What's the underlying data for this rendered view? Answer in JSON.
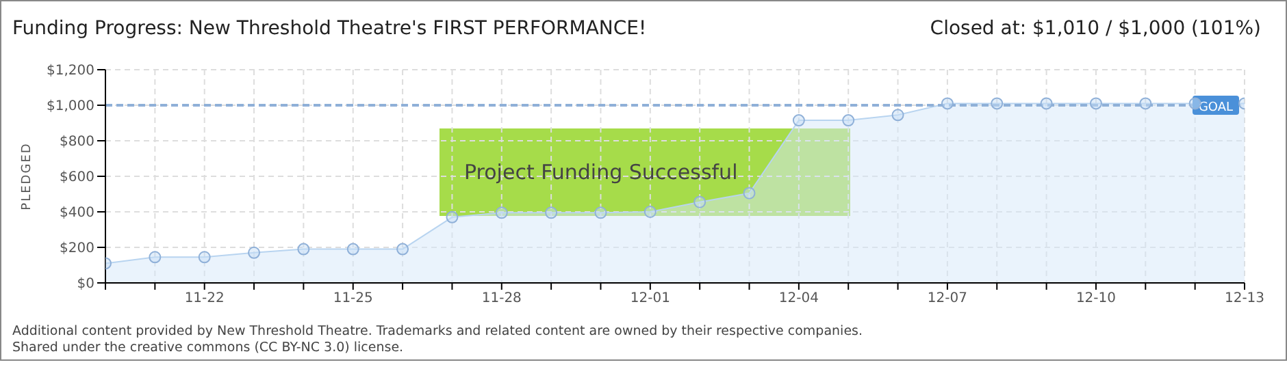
{
  "chart_data": {
    "type": "area",
    "title": "Funding Progress: New Threshold Theatre's FIRST PERFORMANCE!",
    "subtitle": "Closed at:  $1,010 /  $1,000 (101%)",
    "ylabel": "PLEDGED",
    "categories": [
      null,
      null,
      "11-22",
      null,
      null,
      "11-25",
      null,
      null,
      "11-28",
      null,
      null,
      "12-01",
      null,
      null,
      "12-04",
      null,
      null,
      "12-07",
      null,
      null,
      "12-10",
      null,
      null,
      "12-13"
    ],
    "series": [
      {
        "color": "#b8d4f0",
        "values": [
          110,
          145,
          145,
          170,
          190,
          190,
          190,
          370,
          395,
          395,
          395,
          400,
          455,
          505,
          915,
          915,
          945,
          1010,
          1010,
          1010,
          1010,
          1010,
          1010,
          1010
        ]
      }
    ],
    "ylim": [
      0,
      1200
    ],
    "yticks": [
      {
        "value": 0,
        "label": "$0"
      },
      {
        "value": 200,
        "label": "$200"
      },
      {
        "value": 400,
        "label": "$400"
      },
      {
        "value": 600,
        "label": "$600"
      },
      {
        "value": 800,
        "label": "$800"
      },
      {
        "value": 1000,
        "label": "$1,000"
      },
      {
        "value": 1200,
        "label": "$1,200"
      }
    ],
    "ref_lines": [
      {
        "axis": "y",
        "value": 1000,
        "label": "GOAL",
        "color": "#8fb0d8",
        "line_style": "dashed"
      }
    ],
    "grid": true,
    "marker": "circle",
    "legend": false,
    "annotations": [
      "Project Funding Successful",
      "Additional content provided by New Threshold Theatre. Trademarks and related content are owned by their respective companies.",
      "Shared under the creative commons (CC BY-NC 3.0) license."
    ]
  }
}
